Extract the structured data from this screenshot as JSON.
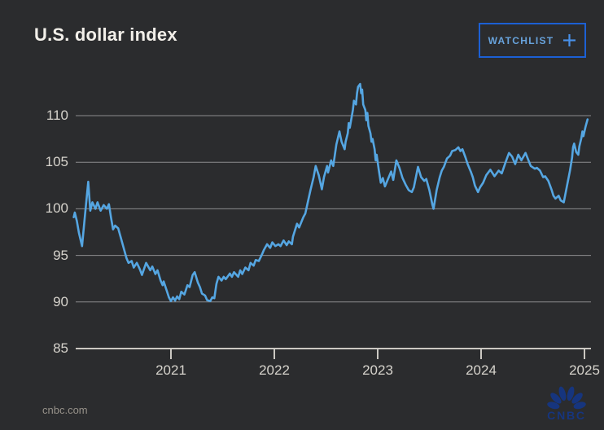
{
  "header": {
    "title": "U.S. dollar index",
    "watchlist_label": "WATCHLIST"
  },
  "footer": {
    "source": "cnbc.com",
    "logo_text": "CNBC"
  },
  "colors": {
    "background": "#2b2c2e",
    "line": "#55a6e2",
    "grid": "#8c8c8e",
    "axis": "#cbc8c2",
    "tick_label": "#d6d3cc",
    "title": "#f2efe9",
    "button_border": "#1c60d4",
    "button_text": "#68a3dc",
    "plus_icon": "#4890e8",
    "source_text": "#97928a",
    "logo_navy": "#16357e"
  },
  "chart_data": {
    "type": "line",
    "title": "U.S. dollar index",
    "series_name": "U.S. dollar index (DXY)",
    "grid": "horizontal",
    "legend": "none",
    "x_ticks": [
      2021,
      2022,
      2023,
      2024,
      2025
    ],
    "y_ticks": [
      110,
      105,
      100,
      95,
      90,
      85
    ],
    "xlim": [
      2020.05,
      2025.1
    ],
    "ylim": [
      85,
      115
    ],
    "line_color": "#55a6e2",
    "points": [
      [
        2020.06,
        99.1
      ],
      [
        2020.07,
        99.6
      ],
      [
        2020.09,
        98.7
      ],
      [
        2020.11,
        97.4
      ],
      [
        2020.14,
        96.0
      ],
      [
        2020.17,
        99.5
      ],
      [
        2020.2,
        102.9
      ],
      [
        2020.22,
        99.8
      ],
      [
        2020.24,
        100.7
      ],
      [
        2020.27,
        100.0
      ],
      [
        2020.29,
        100.7
      ],
      [
        2020.32,
        99.8
      ],
      [
        2020.35,
        100.4
      ],
      [
        2020.38,
        100.0
      ],
      [
        2020.4,
        100.5
      ],
      [
        2020.42,
        99.1
      ],
      [
        2020.44,
        97.8
      ],
      [
        2020.46,
        98.2
      ],
      [
        2020.49,
        97.9
      ],
      [
        2020.51,
        97.1
      ],
      [
        2020.54,
        95.9
      ],
      [
        2020.57,
        94.7
      ],
      [
        2020.59,
        94.2
      ],
      [
        2020.62,
        94.4
      ],
      [
        2020.64,
        93.7
      ],
      [
        2020.67,
        94.2
      ],
      [
        2020.7,
        93.5
      ],
      [
        2020.72,
        92.9
      ],
      [
        2020.76,
        94.2
      ],
      [
        2020.8,
        93.4
      ],
      [
        2020.82,
        93.8
      ],
      [
        2020.85,
        93.0
      ],
      [
        2020.87,
        93.4
      ],
      [
        2020.9,
        92.3
      ],
      [
        2020.92,
        91.8
      ],
      [
        2020.93,
        92.2
      ],
      [
        2020.96,
        91.2
      ],
      [
        2020.98,
        90.5
      ],
      [
        2021.0,
        90.1
      ],
      [
        2021.02,
        90.5
      ],
      [
        2021.04,
        90.15
      ],
      [
        2021.06,
        90.6
      ],
      [
        2021.08,
        90.3
      ],
      [
        2021.1,
        91.1
      ],
      [
        2021.13,
        90.8
      ],
      [
        2021.16,
        91.8
      ],
      [
        2021.18,
        91.6
      ],
      [
        2021.21,
        92.9
      ],
      [
        2021.23,
        93.2
      ],
      [
        2021.26,
        92.1
      ],
      [
        2021.28,
        91.6
      ],
      [
        2021.3,
        90.9
      ],
      [
        2021.33,
        90.7
      ],
      [
        2021.35,
        90.2
      ],
      [
        2021.38,
        90.1
      ],
      [
        2021.4,
        90.5
      ],
      [
        2021.42,
        90.4
      ],
      [
        2021.44,
        91.95
      ],
      [
        2021.46,
        92.7
      ],
      [
        2021.49,
        92.3
      ],
      [
        2021.51,
        92.7
      ],
      [
        2021.53,
        92.45
      ],
      [
        2021.57,
        93.05
      ],
      [
        2021.59,
        92.7
      ],
      [
        2021.61,
        93.2
      ],
      [
        2021.65,
        92.7
      ],
      [
        2021.67,
        93.4
      ],
      [
        2021.69,
        93.0
      ],
      [
        2021.72,
        93.7
      ],
      [
        2021.75,
        93.4
      ],
      [
        2021.77,
        94.2
      ],
      [
        2021.8,
        93.9
      ],
      [
        2021.82,
        94.5
      ],
      [
        2021.85,
        94.4
      ],
      [
        2021.88,
        95.1
      ],
      [
        2021.9,
        95.6
      ],
      [
        2021.93,
        96.2
      ],
      [
        2021.96,
        95.8
      ],
      [
        2021.98,
        96.4
      ],
      [
        2022.01,
        96.0
      ],
      [
        2022.04,
        96.2
      ],
      [
        2022.06,
        96.0
      ],
      [
        2022.09,
        96.6
      ],
      [
        2022.12,
        96.1
      ],
      [
        2022.14,
        96.5
      ],
      [
        2022.17,
        96.2
      ],
      [
        2022.18,
        97.0
      ],
      [
        2022.22,
        98.4
      ],
      [
        2022.24,
        98.0
      ],
      [
        2022.28,
        99.1
      ],
      [
        2022.3,
        99.5
      ],
      [
        2022.32,
        100.5
      ],
      [
        2022.35,
        102.0
      ],
      [
        2022.38,
        103.4
      ],
      [
        2022.4,
        104.6
      ],
      [
        2022.43,
        103.6
      ],
      [
        2022.46,
        102.1
      ],
      [
        2022.48,
        103.4
      ],
      [
        2022.51,
        104.6
      ],
      [
        2022.52,
        103.9
      ],
      [
        2022.55,
        105.2
      ],
      [
        2022.57,
        104.6
      ],
      [
        2022.6,
        106.9
      ],
      [
        2022.63,
        108.3
      ],
      [
        2022.65,
        107.2
      ],
      [
        2022.68,
        106.4
      ],
      [
        2022.69,
        107.2
      ],
      [
        2022.71,
        108.1
      ],
      [
        2022.72,
        109.2
      ],
      [
        2022.73,
        108.7
      ],
      [
        2022.75,
        110.0
      ],
      [
        2022.76,
        110.6
      ],
      [
        2022.77,
        111.6
      ],
      [
        2022.79,
        111.2
      ],
      [
        2022.8,
        112.4
      ],
      [
        2022.81,
        113.1
      ],
      [
        2022.83,
        113.4
      ],
      [
        2022.84,
        112.4
      ],
      [
        2022.85,
        112.8
      ],
      [
        2022.86,
        111.2
      ],
      [
        2022.88,
        110.6
      ],
      [
        2022.89,
        109.5
      ],
      [
        2022.9,
        110.3
      ],
      [
        2022.91,
        108.9
      ],
      [
        2022.93,
        108.1
      ],
      [
        2022.94,
        107.2
      ],
      [
        2022.95,
        107.5
      ],
      [
        2022.97,
        106.4
      ],
      [
        2022.98,
        105.2
      ],
      [
        2022.99,
        105.8
      ],
      [
        2023.01,
        104.2
      ],
      [
        2023.03,
        102.8
      ],
      [
        2023.05,
        103.3
      ],
      [
        2023.07,
        102.4
      ],
      [
        2023.1,
        103.2
      ],
      [
        2023.13,
        104.0
      ],
      [
        2023.15,
        103.1
      ],
      [
        2023.18,
        105.2
      ],
      [
        2023.21,
        104.4
      ],
      [
        2023.24,
        103.3
      ],
      [
        2023.27,
        102.6
      ],
      [
        2023.3,
        102.0
      ],
      [
        2023.33,
        101.8
      ],
      [
        2023.35,
        102.3
      ],
      [
        2023.39,
        104.5
      ],
      [
        2023.42,
        103.4
      ],
      [
        2023.45,
        103.0
      ],
      [
        2023.47,
        103.2
      ],
      [
        2023.5,
        102.0
      ],
      [
        2023.53,
        100.4
      ],
      [
        2023.54,
        100.0
      ],
      [
        2023.57,
        102.0
      ],
      [
        2023.6,
        103.4
      ],
      [
        2023.62,
        104.1
      ],
      [
        2023.64,
        104.5
      ],
      [
        2023.67,
        105.4
      ],
      [
        2023.7,
        105.7
      ],
      [
        2023.72,
        106.2
      ],
      [
        2023.75,
        106.3
      ],
      [
        2023.78,
        106.6
      ],
      [
        2023.8,
        106.2
      ],
      [
        2023.82,
        106.4
      ],
      [
        2023.85,
        105.5
      ],
      [
        2023.87,
        104.8
      ],
      [
        2023.9,
        104.0
      ],
      [
        2023.92,
        103.4
      ],
      [
        2023.94,
        102.5
      ],
      [
        2023.97,
        101.8
      ],
      [
        2023.99,
        102.3
      ],
      [
        2024.02,
        102.8
      ],
      [
        2024.05,
        103.6
      ],
      [
        2024.09,
        104.2
      ],
      [
        2024.13,
        103.5
      ],
      [
        2024.17,
        104.1
      ],
      [
        2024.2,
        103.8
      ],
      [
        2024.24,
        105.1
      ],
      [
        2024.27,
        106.0
      ],
      [
        2024.3,
        105.6
      ],
      [
        2024.33,
        104.8
      ],
      [
        2024.36,
        105.8
      ],
      [
        2024.39,
        105.2
      ],
      [
        2024.43,
        106.0
      ],
      [
        2024.48,
        104.6
      ],
      [
        2024.52,
        104.3
      ],
      [
        2024.54,
        104.4
      ],
      [
        2024.57,
        104.1
      ],
      [
        2024.6,
        103.4
      ],
      [
        2024.62,
        103.5
      ],
      [
        2024.65,
        103.0
      ],
      [
        2024.68,
        102.1
      ],
      [
        2024.7,
        101.4
      ],
      [
        2024.72,
        101.1
      ],
      [
        2024.75,
        101.4
      ],
      [
        2024.77,
        100.9
      ],
      [
        2024.8,
        100.7
      ],
      [
        2024.83,
        102.4
      ],
      [
        2024.86,
        104.1
      ],
      [
        2024.88,
        105.5
      ],
      [
        2024.89,
        106.6
      ],
      [
        2024.9,
        107.0
      ],
      [
        2024.92,
        106.1
      ],
      [
        2024.94,
        105.8
      ],
      [
        2024.95,
        106.7
      ],
      [
        2024.97,
        107.6
      ],
      [
        2024.98,
        108.3
      ],
      [
        2024.99,
        107.8
      ],
      [
        2025.01,
        108.8
      ],
      [
        2025.03,
        109.6
      ]
    ]
  }
}
